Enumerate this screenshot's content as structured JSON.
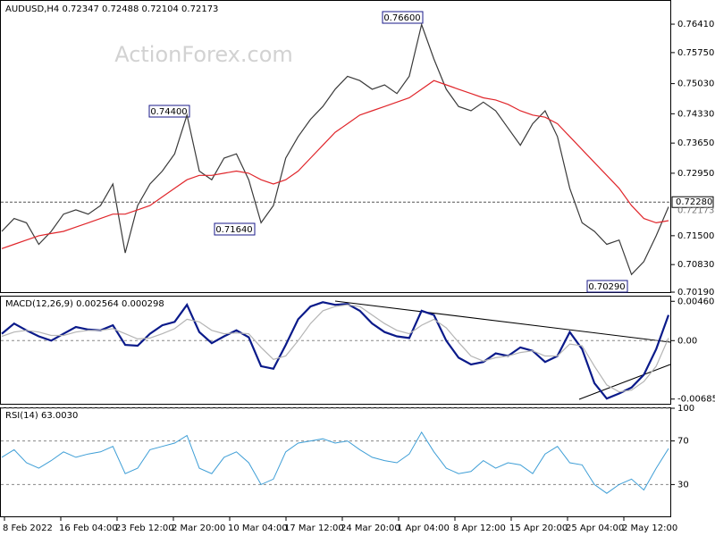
{
  "watermark": "ActionForex.com",
  "chart_data": [
    {
      "type": "line",
      "title": "AUDUSD,H4  0.72347 0.72488 0.72104 0.72173",
      "ylim": [
        0.7017,
        0.7695
      ],
      "yticks": [
        {
          "value": 0.7641,
          "label": "0.76410"
        },
        {
          "value": 0.7575,
          "label": "0.75750"
        },
        {
          "value": 0.7503,
          "label": "0.75030"
        },
        {
          "value": 0.7433,
          "label": "0.74330"
        },
        {
          "value": 0.7365,
          "label": "0.73650"
        },
        {
          "value": 0.7295,
          "label": "0.72950"
        },
        {
          "value": 0.715,
          "label": "0.71500"
        },
        {
          "value": 0.7083,
          "label": "0.70830"
        },
        {
          "value": 0.7019,
          "label": "0.70190"
        }
      ],
      "price_line": {
        "value": 0.7228,
        "label": "0.72280"
      },
      "last_price": {
        "value": 0.72173,
        "label": "0.72173"
      },
      "annotations": [
        "0.74400",
        "0.71640",
        "0.76600",
        "0.70290"
      ],
      "series": [
        {
          "name": "AUDUSD",
          "color": "#3a3a3a",
          "values": [
            0.716,
            0.719,
            0.718,
            0.713,
            0.716,
            0.72,
            0.721,
            0.72,
            0.722,
            0.727,
            0.711,
            0.722,
            0.727,
            0.73,
            0.734,
            0.743,
            0.73,
            0.728,
            0.733,
            0.734,
            0.728,
            0.718,
            0.722,
            0.733,
            0.738,
            0.742,
            0.745,
            0.749,
            0.752,
            0.751,
            0.749,
            0.75,
            0.748,
            0.752,
            0.764,
            0.756,
            0.749,
            0.745,
            0.744,
            0.746,
            0.744,
            0.74,
            0.736,
            0.741,
            0.744,
            0.738,
            0.726,
            0.718,
            0.716,
            0.713,
            0.714,
            0.706,
            0.709,
            0.715,
            0.7217
          ]
        },
        {
          "name": "MA",
          "color": "#e0262b",
          "values": [
            0.712,
            0.713,
            0.714,
            0.715,
            0.7155,
            0.716,
            0.717,
            0.718,
            0.719,
            0.72,
            0.72,
            0.721,
            0.722,
            0.724,
            0.726,
            0.728,
            0.729,
            0.729,
            0.7295,
            0.73,
            0.7295,
            0.728,
            0.727,
            0.728,
            0.73,
            0.733,
            0.736,
            0.739,
            0.741,
            0.743,
            0.744,
            0.745,
            0.746,
            0.747,
            0.749,
            0.751,
            0.75,
            0.749,
            0.748,
            0.747,
            0.7465,
            0.7455,
            0.744,
            0.743,
            0.7425,
            0.741,
            0.738,
            0.735,
            0.732,
            0.729,
            0.726,
            0.722,
            0.719,
            0.718,
            0.7185
          ]
        }
      ]
    },
    {
      "type": "line",
      "title": "MACD(12,26,9) 0.002564 0.000298",
      "ylim": [
        -0.00751,
        0.00516
      ],
      "yticks": [
        {
          "value": 0.004608,
          "label": "0.004608"
        },
        {
          "value": 0,
          "label": "0.00"
        },
        {
          "value": -0.006853,
          "label": "-0.006853"
        }
      ],
      "zero_line": true,
      "series": [
        {
          "name": "MACD",
          "color": "#0a1a8a",
          "values": [
            0.0008,
            0.002,
            0.0012,
            0.0005,
            0.0,
            0.0008,
            0.0016,
            0.0013,
            0.0012,
            0.0018,
            -0.0005,
            -0.0006,
            0.0008,
            0.0018,
            0.0022,
            0.0042,
            0.001,
            -0.0003,
            0.0005,
            0.0012,
            0.0004,
            -0.003,
            -0.0033,
            -0.0005,
            0.0025,
            0.004,
            0.0045,
            0.0042,
            0.0043,
            0.0035,
            0.002,
            0.001,
            0.0005,
            0.0003,
            0.0035,
            0.003,
            0.0,
            -0.002,
            -0.0028,
            -0.0025,
            -0.0015,
            -0.0018,
            -0.0008,
            -0.0012,
            -0.0025,
            -0.0018,
            0.001,
            -0.001,
            -0.005,
            -0.0068,
            -0.0062,
            -0.0055,
            -0.004,
            -0.001,
            0.003
          ]
        },
        {
          "name": "Signal",
          "color": "#b4b4b4",
          "values": [
            0.0005,
            0.001,
            0.0012,
            0.001,
            0.0006,
            0.0006,
            0.001,
            0.0012,
            0.0012,
            0.0014,
            0.0008,
            0.0002,
            0.0003,
            0.0008,
            0.0014,
            0.0025,
            0.0022,
            0.0012,
            0.0008,
            0.0009,
            0.0008,
            -0.0008,
            -0.0022,
            -0.0018,
            0.0,
            0.002,
            0.0035,
            0.004,
            0.0042,
            0.004,
            0.003,
            0.002,
            0.0012,
            0.0008,
            0.0018,
            0.0025,
            0.0015,
            -0.0002,
            -0.0018,
            -0.0024,
            -0.002,
            -0.0018,
            -0.0014,
            -0.0012,
            -0.0018,
            -0.0018,
            -0.0004,
            -0.0006,
            -0.003,
            -0.0052,
            -0.006,
            -0.0058,
            -0.0048,
            -0.003,
            0.0003
          ]
        }
      ]
    },
    {
      "type": "line",
      "title": "RSI(14) 63.0030",
      "ylim": [
        0,
        100
      ],
      "yticks": [
        100,
        70,
        30
      ],
      "grid": true,
      "x_labels": [
        "8 Feb 2022",
        "16 Feb 04:00",
        "23 Feb 12:00",
        "2 Mar 20:00",
        "10 Mar 04:00",
        "17 Mar 12:00",
        "24 Mar 20:00",
        "1 Apr 04:00",
        "8 Apr 12:00",
        "15 Apr 20:00",
        "25 Apr 04:00",
        "2 May 12:00"
      ],
      "series": [
        {
          "name": "RSI",
          "color": "#3e9ed6",
          "values": [
            55,
            62,
            50,
            45,
            52,
            60,
            55,
            58,
            60,
            65,
            40,
            45,
            62,
            65,
            68,
            75,
            45,
            40,
            55,
            60,
            50,
            30,
            35,
            60,
            68,
            70,
            72,
            68,
            70,
            62,
            55,
            52,
            50,
            58,
            78,
            60,
            45,
            40,
            42,
            52,
            45,
            50,
            48,
            40,
            58,
            65,
            50,
            48,
            30,
            22,
            30,
            35,
            25,
            45,
            63
          ]
        }
      ]
    }
  ]
}
